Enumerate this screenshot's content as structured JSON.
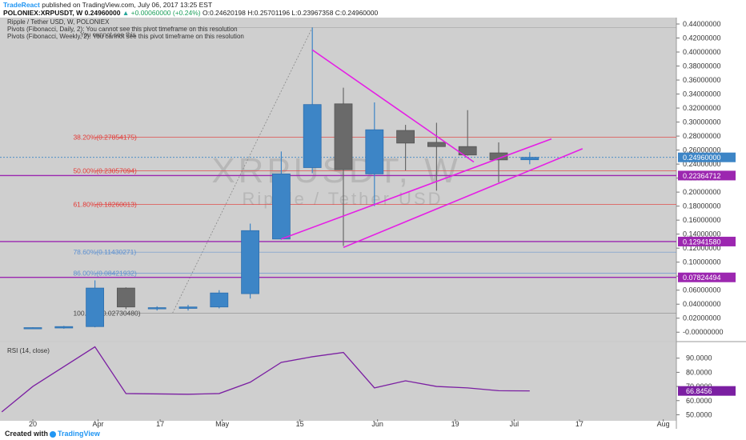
{
  "header": {
    "author": "TradeReact",
    "published_text": "published on TradingView.com, July 06, 2017 13:25 EST",
    "symbol": "POLONIEX:XRPUSDT, W",
    "last_price": "0.24960000",
    "change": "+0.00060000 (+0.24%)",
    "ohlc_o": "O:0.24620198",
    "ohlc_h": "H:0.25701196",
    "ohlc_l": "L:0.23967358",
    "ohlc_c": "C:0.24960000",
    "series_title": "Ripple / Tether USD, W, POLONIEX",
    "pivot_daily": "Pivots (Fibonacci, Daily, 2): You cannot see this pivot timeframe on this resolution",
    "pivot_weekly": "Pivots (Fibonacci, Weekly, 2): You cannot see this pivot timeframe on this resolution",
    "pivot_overlap": "You cannot see this"
  },
  "watermark": {
    "symbol": "XRPUSDT, W",
    "name": "Ripple / Tether USD"
  },
  "footer": {
    "created_with": "Created with",
    "brand": "TradingView"
  },
  "colors": {
    "bullish": "#3d85c6",
    "bearish": "#6a6a6a",
    "background": "#cfcfcf",
    "trendline": "#e51ee5",
    "horizontal": "#9c27b0",
    "fib_red": "#e53935",
    "fib_blue": "#5b8fd0",
    "rsi_line": "#7b1fa2"
  },
  "chart_data": {
    "type": "candlestick",
    "y_range": [
      -0.01,
      0.44
    ],
    "y_ticks": [
      "0.44000000",
      "0.42000000",
      "0.40000000",
      "0.38000000",
      "0.36000000",
      "0.34000000",
      "0.32000000",
      "0.30000000",
      "0.28000000",
      "0.26000000",
      "0.24000000",
      "0.22000000",
      "0.20000000",
      "0.18000000",
      "0.16000000",
      "0.14000000",
      "0.12000000",
      "0.10000000",
      "0.08000000",
      "0.06000000",
      "0.04000000",
      "0.02000000",
      "-0.00000000"
    ],
    "x_labels": [
      "20",
      "Apr",
      "17",
      "May",
      "15",
      "Jun",
      "19",
      "Jul",
      "17",
      "Aug"
    ],
    "candles": [
      {
        "o": 0.006,
        "h": 0.007,
        "l": 0.0055,
        "c": 0.0065
      },
      {
        "o": 0.006,
        "h": 0.009,
        "l": 0.005,
        "c": 0.008
      },
      {
        "o": 0.008,
        "h": 0.074,
        "l": 0.007,
        "c": 0.063
      },
      {
        "o": 0.063,
        "h": 0.064,
        "l": 0.033,
        "c": 0.036
      },
      {
        "o": 0.034,
        "h": 0.037,
        "l": 0.031,
        "c": 0.035
      },
      {
        "o": 0.034,
        "h": 0.039,
        "l": 0.031,
        "c": 0.036
      },
      {
        "o": 0.036,
        "h": 0.06,
        "l": 0.034,
        "c": 0.056
      },
      {
        "o": 0.055,
        "h": 0.155,
        "l": 0.048,
        "c": 0.145
      },
      {
        "o": 0.133,
        "h": 0.258,
        "l": 0.132,
        "c": 0.226
      },
      {
        "o": 0.235,
        "h": 0.435,
        "l": 0.227,
        "c": 0.325
      },
      {
        "o": 0.326,
        "h": 0.349,
        "l": 0.123,
        "c": 0.232
      },
      {
        "o": 0.226,
        "h": 0.328,
        "l": 0.18,
        "c": 0.289
      },
      {
        "o": 0.288,
        "h": 0.296,
        "l": 0.231,
        "c": 0.27
      },
      {
        "o": 0.271,
        "h": 0.299,
        "l": 0.202,
        "c": 0.265
      },
      {
        "o": 0.265,
        "h": 0.317,
        "l": 0.252,
        "c": 0.253
      },
      {
        "o": 0.256,
        "h": 0.271,
        "l": 0.214,
        "c": 0.246
      },
      {
        "o": 0.2462,
        "h": 0.257,
        "l": 0.2397,
        "c": 0.2496
      }
    ],
    "fib_levels": [
      {
        "label": "38.20%(0.27854175)",
        "value": 0.27854175,
        "color": "red"
      },
      {
        "label": "50.00%(0.23057094)",
        "value": 0.23057094,
        "color": "red"
      },
      {
        "label": "61.80%(0.18260013)",
        "value": 0.18260013,
        "color": "red"
      },
      {
        "label": "78.60%(0.11430271)",
        "value": 0.11430271,
        "color": "blue"
      },
      {
        "label": "86.00%(0.08421932)",
        "value": 0.08421932,
        "color": "blue"
      },
      {
        "label": "100.00%(0.02730480)",
        "value": 0.0273048,
        "color": "gray"
      }
    ],
    "fib_top_value": 0.435,
    "horizontal_levels": [
      {
        "label": "0.22364712",
        "value": 0.22364712
      },
      {
        "label": "0.12941580",
        "value": 0.1294158
      },
      {
        "label": "0.07824494",
        "value": 0.07824494
      }
    ],
    "current_price": {
      "label": "0.24960000",
      "value": 0.2496
    },
    "trendlines": [
      {
        "from": {
          "bar": 9,
          "value": 0.403
        },
        "to": {
          "bar": 14.2,
          "value": 0.243
        }
      },
      {
        "from": {
          "bar": 8,
          "value": 0.133
        },
        "to": {
          "bar": 16.7,
          "value": 0.276
        }
      },
      {
        "from": {
          "bar": 10,
          "value": 0.121
        },
        "to": {
          "bar": 17.7,
          "value": 0.262
        }
      }
    ],
    "rsi": {
      "label": "RSI (14, close)",
      "y_range": [
        48,
        100
      ],
      "y_ticks": [
        "90.0000",
        "80.0000",
        "70.0000",
        "60.0000",
        "50.0000"
      ],
      "last_label": "66.8456",
      "last_value": 66.8456,
      "values": [
        {
          "bar": -1,
          "v": 52
        },
        {
          "bar": 0,
          "v": 70
        },
        {
          "bar": 2,
          "v": 98
        },
        {
          "bar": 3,
          "v": 65
        },
        {
          "bar": 5,
          "v": 64.5
        },
        {
          "bar": 6,
          "v": 65
        },
        {
          "bar": 7,
          "v": 73
        },
        {
          "bar": 8,
          "v": 87
        },
        {
          "bar": 9,
          "v": 91
        },
        {
          "bar": 10,
          "v": 94
        },
        {
          "bar": 11,
          "v": 69
        },
        {
          "bar": 12,
          "v": 74
        },
        {
          "bar": 13,
          "v": 70
        },
        {
          "bar": 14,
          "v": 69
        },
        {
          "bar": 15,
          "v": 67
        },
        {
          "bar": 16,
          "v": 66.8456
        }
      ]
    }
  }
}
